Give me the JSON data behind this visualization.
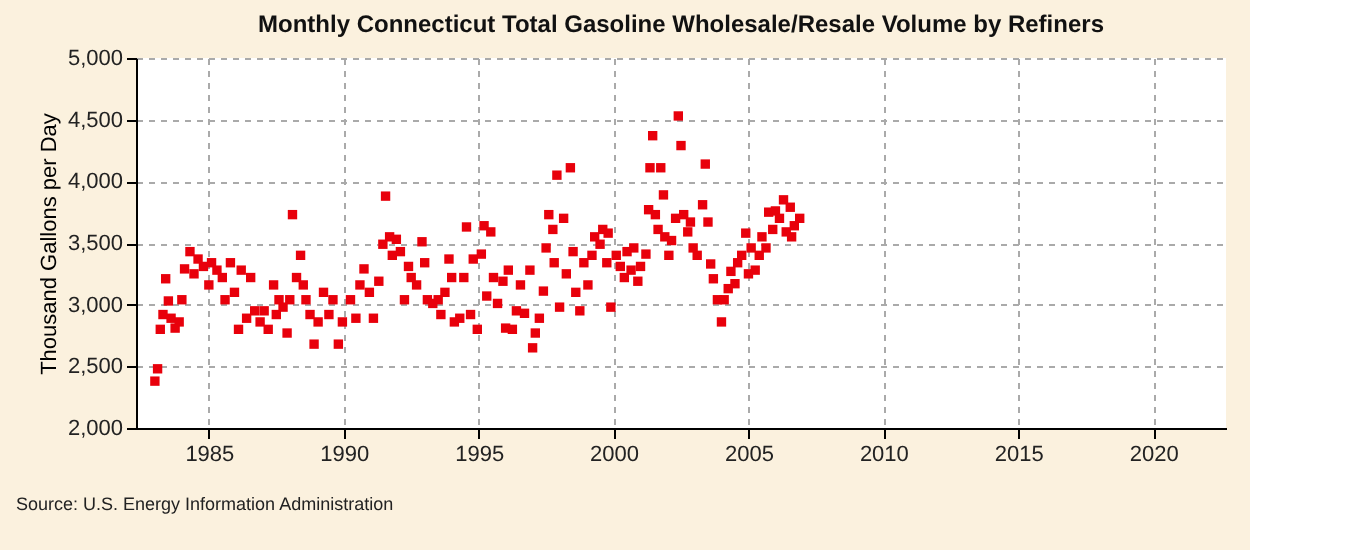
{
  "chart_data": {
    "type": "scatter",
    "title": "Monthly Connecticut Total Gasoline Wholesale/Resale Volume by Refiners",
    "ylabel": "Thousand Gallons per Day",
    "annotations": [
      "Source: U.S. Energy Information Administration"
    ],
    "xlim": [
      1982.3,
      2022.7
    ],
    "xticks": [
      1985,
      1990,
      1995,
      2000,
      2005,
      2010,
      2015,
      2020
    ],
    "ylim": [
      2000,
      5000
    ],
    "yticks": [
      {
        "value": 2000,
        "label": "2,000"
      },
      {
        "value": 2500,
        "label": "2,500"
      },
      {
        "value": 3000,
        "label": "3,000"
      },
      {
        "value": 3500,
        "label": "3,500"
      },
      {
        "value": 4000,
        "label": "4,000"
      },
      {
        "value": 4500,
        "label": "4,500"
      },
      {
        "value": 5000,
        "label": "5,000"
      }
    ],
    "grid": true,
    "marker": "square",
    "series": [
      {
        "color": "#e8000b",
        "x": [
          1983.0,
          1983.1,
          1983.2,
          1983.3,
          1983.4,
          1983.5,
          1983.6,
          1983.75,
          1983.9,
          1984.0,
          1984.1,
          1984.3,
          1984.45,
          1984.6,
          1984.8,
          1985.0,
          1985.1,
          1985.3,
          1985.5,
          1985.6,
          1985.8,
          1985.95,
          1986.1,
          1986.2,
          1986.4,
          1986.55,
          1986.7,
          1986.9,
          1987.05,
          1987.2,
          1987.4,
          1987.5,
          1987.6,
          1987.75,
          1987.9,
          1988.0,
          1988.1,
          1988.25,
          1988.4,
          1988.5,
          1988.6,
          1988.75,
          1988.9,
          1989.05,
          1989.25,
          1989.45,
          1989.6,
          1989.8,
          1989.95,
          1990.25,
          1990.45,
          1990.6,
          1990.75,
          1990.95,
          1991.1,
          1991.3,
          1991.45,
          1991.55,
          1991.7,
          1991.8,
          1991.95,
          1992.1,
          1992.25,
          1992.4,
          1992.5,
          1992.7,
          1992.9,
          1993.0,
          1993.1,
          1993.3,
          1993.5,
          1993.6,
          1993.75,
          1993.9,
          1994.0,
          1994.1,
          1994.3,
          1994.45,
          1994.55,
          1994.7,
          1994.8,
          1994.95,
          1995.1,
          1995.2,
          1995.3,
          1995.45,
          1995.55,
          1995.7,
          1995.9,
          1996.0,
          1996.1,
          1996.25,
          1996.4,
          1996.55,
          1996.7,
          1996.9,
          1997.0,
          1997.1,
          1997.25,
          1997.4,
          1997.5,
          1997.6,
          1997.75,
          1997.8,
          1997.9,
          1998.0,
          1998.15,
          1998.25,
          1998.4,
          1998.5,
          1998.6,
          1998.75,
          1998.9,
          1999.05,
          1999.2,
          1999.3,
          1999.5,
          1999.6,
          1999.75,
          1999.8,
          1999.9,
          2000.1,
          2000.25,
          2000.4,
          2000.5,
          2000.65,
          2000.75,
          2000.9,
          2001.0,
          2001.2,
          2001.3,
          2001.35,
          2001.45,
          2001.55,
          2001.65,
          2001.75,
          2001.85,
          2001.9,
          2002.05,
          2002.15,
          2002.3,
          2002.4,
          2002.5,
          2002.6,
          2002.75,
          2002.85,
          2002.95,
          2003.1,
          2003.3,
          2003.4,
          2003.5,
          2003.6,
          2003.7,
          2003.85,
          2004.0,
          2004.1,
          2004.25,
          2004.35,
          2004.5,
          2004.6,
          2004.75,
          2004.9,
          2005.0,
          2005.1,
          2005.25,
          2005.4,
          2005.5,
          2005.65,
          2005.75,
          2005.9,
          2006.0,
          2006.15,
          2006.3,
          2006.4,
          2006.55,
          2006.6,
          2006.7,
          2006.9
        ],
        "values": [
          2380,
          2480,
          2800,
          2920,
          3210,
          3030,
          2890,
          2810,
          2860,
          3040,
          3290,
          3430,
          3250,
          3370,
          3310,
          3160,
          3340,
          3280,
          3220,
          3040,
          3340,
          3100,
          2800,
          3280,
          2890,
          3220,
          2950,
          2860,
          2950,
          2800,
          3160,
          2920,
          3040,
          2980,
          2770,
          3040,
          3730,
          3220,
          3400,
          3160,
          3040,
          2920,
          2680,
          2860,
          3100,
          2920,
          3040,
          2680,
          2860,
          3040,
          2890,
          3160,
          3290,
          3100,
          2890,
          3190,
          3490,
          3880,
          3550,
          3400,
          3530,
          3430,
          3040,
          3310,
          3220,
          3160,
          3510,
          3340,
          3040,
          3010,
          3040,
          2920,
          3100,
          3370,
          3220,
          2860,
          2890,
          3220,
          3630,
          2920,
          3370,
          2800,
          3410,
          3640,
          3070,
          3590,
          3220,
          3010,
          3190,
          2810,
          3280,
          2800,
          2950,
          3160,
          2930,
          3280,
          2650,
          2770,
          2890,
          3110,
          3460,
          3730,
          3610,
          3340,
          4050,
          2980,
          3700,
          3250,
          4110,
          3430,
          3100,
          2950,
          3340,
          3160,
          3400,
          3550,
          3490,
          3610,
          3340,
          3580,
          2980,
          3400,
          3310,
          3220,
          3430,
          3280,
          3460,
          3190,
          3310,
          3410,
          3770,
          4110,
          4370,
          3730,
          3610,
          4110,
          3890,
          3550,
          3400,
          3520,
          3700,
          4530,
          4290,
          3730,
          3590,
          3670,
          3460,
          3400,
          3810,
          4140,
          3670,
          3330,
          3210,
          3040,
          2860,
          3040,
          3130,
          3270,
          3170,
          3340,
          3400,
          3580,
          3250,
          3460,
          3280,
          3400,
          3550,
          3460,
          3750,
          3610,
          3760,
          3700,
          3850,
          3590,
          3790,
          3550,
          3640,
          3700
        ]
      }
    ]
  }
}
